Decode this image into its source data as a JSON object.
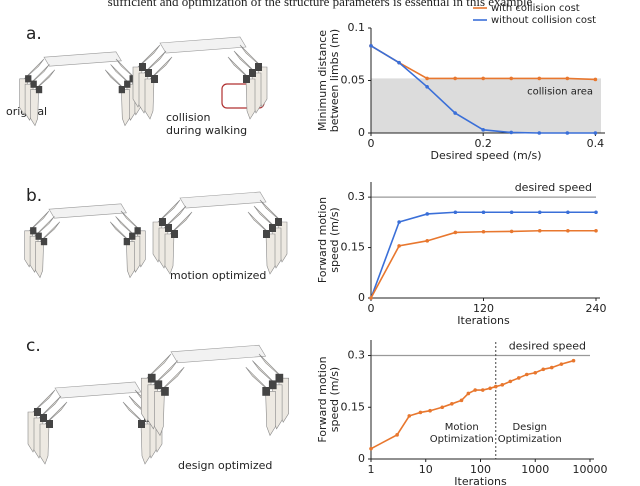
{
  "header_text": "sufficient and optimization of the structure parameters is essential in this example",
  "panels": [
    {
      "label": "a.",
      "captions": [
        [
          "original"
        ],
        [
          "collision",
          "during walking"
        ]
      ]
    },
    {
      "label": "b.",
      "captions": [
        [
          "motion optimized"
        ]
      ]
    },
    {
      "label": "c.",
      "captions": [
        [
          "design optimized"
        ]
      ]
    }
  ],
  "chart_data": [
    {
      "type": "line",
      "xlabel": "Desired speed (m/s)",
      "ylabel": [
        "Minimum distance",
        "between limbs (m)"
      ],
      "x": [
        0,
        0.05,
        0.1,
        0.15,
        0.2,
        0.25,
        0.3,
        0.35,
        0.4
      ],
      "series": [
        {
          "name": "with collision cost",
          "color": "#e8772e",
          "values": [
            0.083,
            0.067,
            0.052,
            0.052,
            0.052,
            0.052,
            0.052,
            0.052,
            0.051
          ]
        },
        {
          "name": "without collision cost",
          "color": "#3a6fd8",
          "values": [
            0.083,
            0.067,
            0.044,
            0.019,
            0.003,
            0.0005,
            0,
            0,
            0
          ]
        }
      ],
      "shaded_region": {
        "range": [
          0,
          0.052
        ],
        "label": "collision area"
      },
      "xlim": [
        0,
        0.41
      ],
      "ylim": [
        0,
        0.1
      ],
      "xticks": [
        0,
        0.2,
        0.4
      ],
      "yticks": [
        0,
        0.05,
        0.1
      ],
      "legend": "top-right"
    },
    {
      "type": "line",
      "xlabel": "Iterations",
      "ylabel": [
        "Forward motion",
        "speed (m/s)"
      ],
      "x": [
        0,
        30,
        60,
        90,
        120,
        150,
        180,
        210,
        240
      ],
      "series": [
        {
          "name": null,
          "color": "#3a6fd8",
          "values": [
            0,
            0.226,
            0.25,
            0.255,
            0.255,
            0.255,
            0.255,
            0.255,
            0.255
          ]
        },
        {
          "name": null,
          "color": "#e8772e",
          "values": [
            0,
            0.155,
            0.17,
            0.195,
            0.197,
            0.198,
            0.2,
            0.2,
            0.2
          ]
        }
      ],
      "reference_line": {
        "value": 0.3,
        "label": "desired speed"
      },
      "xlim": [
        0,
        240
      ],
      "ylim": [
        0,
        0.345
      ],
      "xticks": [
        0,
        120,
        240
      ],
      "yticks": [
        0,
        0.15,
        0.3
      ]
    },
    {
      "type": "line",
      "xlabel": "Iterations",
      "ylabel": [
        "Forward motion",
        "speed (m/s)"
      ],
      "log_x": true,
      "x": [
        1,
        3,
        5,
        8,
        12,
        20,
        30,
        45,
        60,
        80,
        110,
        150,
        190,
        250,
        350,
        500,
        700,
        1000,
        1400,
        2000,
        3000,
        5000
      ],
      "series": [
        {
          "name": null,
          "color": "#e8772e",
          "values": [
            0.03,
            0.07,
            0.125,
            0.135,
            0.14,
            0.15,
            0.16,
            0.17,
            0.19,
            0.2,
            0.2,
            0.205,
            0.21,
            0.215,
            0.225,
            0.235,
            0.245,
            0.25,
            0.26,
            0.265,
            0.275,
            0.285
          ]
        }
      ],
      "reference_line": {
        "value": 0.3,
        "label": "desired speed"
      },
      "divider": {
        "value": 190,
        "labels": [
          [
            "Motion",
            "Optimization"
          ],
          [
            "Design",
            "Optimization"
          ]
        ]
      },
      "xlim": [
        1,
        10000
      ],
      "ylim": [
        0,
        0.345
      ],
      "xticks": [
        1,
        10,
        100,
        1000,
        10000
      ],
      "yticks": [
        0,
        0.15,
        0.3
      ]
    }
  ]
}
